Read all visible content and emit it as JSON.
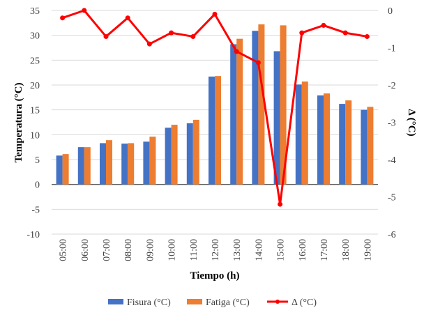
{
  "chart_data": {
    "type": "bar",
    "categories": [
      "05:00",
      "06:00",
      "07:00",
      "08:00",
      "09:00",
      "10:00",
      "11:00",
      "12:00",
      "13:00",
      "14:00",
      "15:00",
      "16:00",
      "17:00",
      "18:00",
      "19:00"
    ],
    "series": [
      {
        "name": "Fisura (°C)",
        "type": "bar",
        "axis": "left",
        "color": "#4472C4",
        "values": [
          5.8,
          7.5,
          8.3,
          8.2,
          8.6,
          11.4,
          12.3,
          21.7,
          28.2,
          30.9,
          26.8,
          20.1,
          17.9,
          16.2,
          15.0
        ]
      },
      {
        "name": "Fatiga (°C)",
        "type": "bar",
        "axis": "left",
        "color": "#ED7D31",
        "values": [
          6.1,
          7.5,
          8.9,
          8.3,
          9.6,
          12.0,
          13.0,
          21.8,
          29.3,
          32.2,
          32.0,
          20.7,
          18.3,
          16.9,
          15.6
        ]
      },
      {
        "name": "Δ (°C)",
        "type": "line",
        "axis": "right",
        "color": "#FF0000",
        "values": [
          -0.2,
          0,
          -0.7,
          -0.2,
          -0.9,
          -0.6,
          -0.7,
          -0.1,
          -1.1,
          -1.4,
          -5.2,
          -0.6,
          -0.4,
          -0.6,
          -0.7
        ]
      }
    ],
    "xlabel": "Tiempo (h)",
    "ylabel": "Temperatura (°C)",
    "y2label": "Δ (°C)",
    "ylim": [
      -10,
      35
    ],
    "y2lim": [
      -6,
      0
    ],
    "yticks": [
      "35",
      "30",
      "25",
      "20",
      "15",
      "10",
      "5",
      "0",
      "-5",
      "-10"
    ],
    "y2ticks": [
      "0",
      "-1",
      "-2",
      "-3",
      "-4",
      "-5",
      "-6"
    ],
    "grid": true,
    "legend": "bottom"
  }
}
